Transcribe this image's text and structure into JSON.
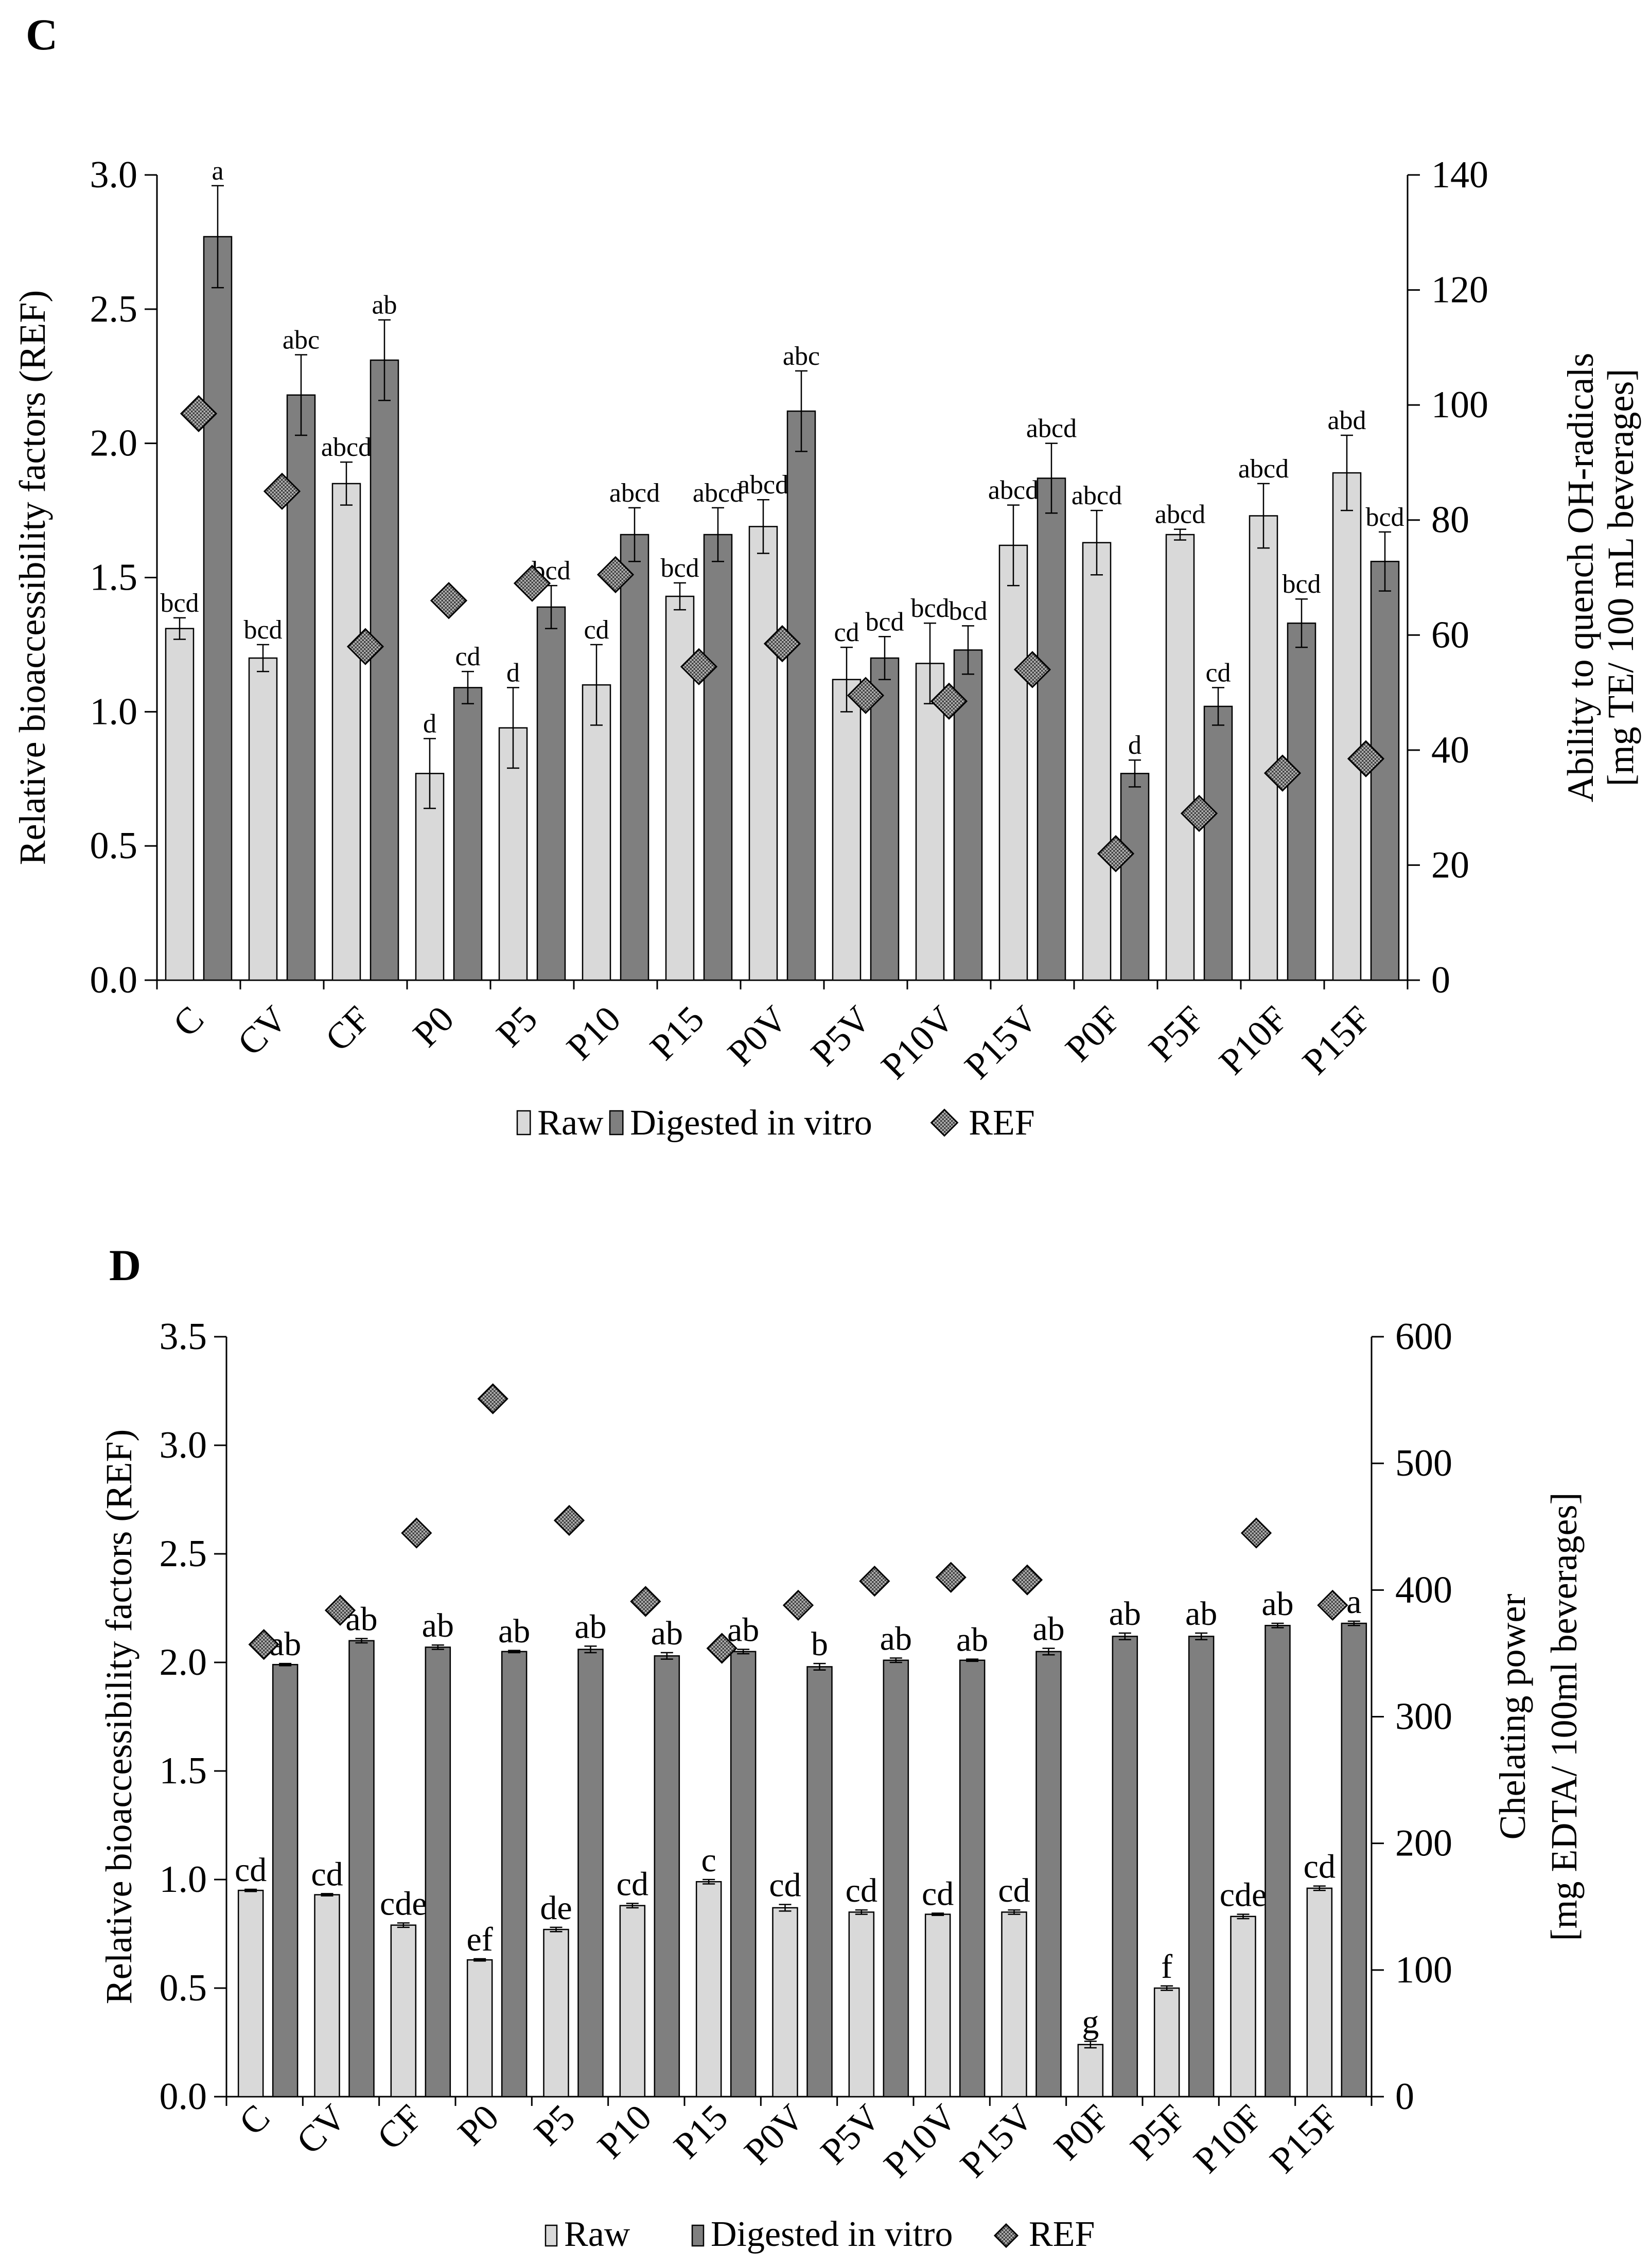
{
  "colors": {
    "raw": "#d9d9d9",
    "digested": "#7f7f7f",
    "ref_marker": "#8c8c8c",
    "axis": "#000000"
  },
  "legend": {
    "raw": "Raw",
    "digested": "Digested in vitro",
    "ref": "REF"
  },
  "chart_data": [
    {
      "panel": "C",
      "type": "bar",
      "categories": [
        "C",
        "CV",
        "CF",
        "P0",
        "P5",
        "P10",
        "P15",
        "P0V",
        "P5V",
        "P10V",
        "P15V",
        "P0F",
        "P5F",
        "P10F",
        "P15F"
      ],
      "ylabel": "Relative bioaccessibility factors (REF)",
      "y2label_line1": "Ability to quench OH-radicals",
      "y2label_line2": "[mg TE/ 100 mL beverages]",
      "ylim": [
        0,
        3.0
      ],
      "yticks": [
        "0.0",
        "0.5",
        "1.0",
        "1.5",
        "2.0",
        "2.5",
        "3.0"
      ],
      "y2lim": [
        0,
        140
      ],
      "y2ticks": [
        "0",
        "20",
        "40",
        "60",
        "80",
        "100",
        "120",
        "140"
      ],
      "series": [
        {
          "name": "Raw",
          "axis": "left",
          "values": [
            1.31,
            1.2,
            1.85,
            0.77,
            0.94,
            1.1,
            1.43,
            1.69,
            1.12,
            1.18,
            1.62,
            1.63,
            1.66,
            1.73,
            1.89
          ],
          "errors": [
            0.04,
            0.05,
            0.08,
            0.13,
            0.15,
            0.15,
            0.05,
            0.1,
            0.12,
            0.15,
            0.15,
            0.12,
            0.02,
            0.12,
            0.14
          ]
        },
        {
          "name": "Digested in vitro",
          "axis": "left",
          "values": [
            2.77,
            2.18,
            2.31,
            1.09,
            1.39,
            1.66,
            1.66,
            2.12,
            1.2,
            1.23,
            1.87,
            0.77,
            1.02,
            1.33,
            1.56
          ],
          "errors": [
            0.19,
            0.15,
            0.15,
            0.06,
            0.08,
            0.1,
            0.1,
            0.15,
            0.08,
            0.09,
            0.13,
            0.05,
            0.07,
            0.09,
            0.11
          ]
        },
        {
          "name": "REF",
          "axis": "right",
          "marker": "diamond",
          "values": [
            98.5,
            85,
            58,
            66,
            69,
            70.5,
            54.5,
            58.5,
            49.5,
            48.5,
            54,
            22,
            29,
            36,
            38.5
          ]
        }
      ],
      "raw_labels": [
        "bcd",
        "bcd",
        "abcd",
        "d",
        "d",
        "cd",
        "bcd",
        "abcd",
        "cd",
        "bcd",
        "abcd",
        "abcd",
        "abcd",
        "abcd",
        "abd"
      ],
      "digested_labels": [
        "a",
        "abc",
        "ab",
        "cd",
        "bcd",
        "abcd",
        "abcd",
        "abc",
        "bcd",
        "bcd",
        "abcd",
        "d",
        "cd",
        "bcd",
        "bcd"
      ]
    },
    {
      "panel": "D",
      "type": "bar",
      "categories": [
        "C",
        "CV",
        "CF",
        "P0",
        "P5",
        "P10",
        "P15",
        "P0V",
        "P5V",
        "P10V",
        "P15V",
        "P0F",
        "P5F",
        "P10F",
        "P15F"
      ],
      "ylabel": "Relative bioaccessibility factors (REF)",
      "y2label_line1": "Chelating power",
      "y2label_line2": "[mg EDTA/ 100ml beverages]",
      "ylim": [
        0,
        3.5
      ],
      "yticks": [
        "0.0",
        "0.5",
        "1.0",
        "1.5",
        "2.0",
        "2.5",
        "3.0",
        "3.5"
      ],
      "y2lim": [
        0,
        600
      ],
      "y2ticks": [
        "0",
        "100",
        "200",
        "300",
        "400",
        "500",
        "600"
      ],
      "series": [
        {
          "name": "Raw",
          "axis": "left",
          "values": [
            0.95,
            0.93,
            0.79,
            0.63,
            0.77,
            0.88,
            0.99,
            0.87,
            0.85,
            0.84,
            0.85,
            0.24,
            0.5,
            0.83,
            0.96
          ],
          "errors": [
            0.005,
            0.005,
            0.01,
            0.005,
            0.01,
            0.01,
            0.01,
            0.015,
            0.01,
            0.005,
            0.01,
            0.015,
            0.01,
            0.01,
            0.01
          ]
        },
        {
          "name": "Digested in vitro",
          "axis": "left",
          "values": [
            1.99,
            2.1,
            2.07,
            2.05,
            2.06,
            2.03,
            2.05,
            1.98,
            2.01,
            2.01,
            2.05,
            2.12,
            2.12,
            2.17,
            2.18
          ],
          "errors": [
            0.005,
            0.01,
            0.01,
            0.005,
            0.015,
            0.015,
            0.01,
            0.015,
            0.01,
            0.005,
            0.015,
            0.015,
            0.015,
            0.01,
            0.01
          ]
        },
        {
          "name": "REF",
          "axis": "right",
          "marker": "diamond",
          "values": [
            357,
            384,
            445,
            551,
            455,
            391,
            354,
            388,
            407,
            410,
            408,
            null,
            null,
            445,
            388
          ]
        }
      ],
      "raw_labels": [
        "cd",
        "cd",
        "cde",
        "ef",
        "de",
        "cd",
        "c",
        "cd",
        "cd",
        "cd",
        "cd",
        "g",
        "f",
        "cde",
        "cd"
      ],
      "digested_labels": [
        "ab",
        "ab",
        "ab",
        "ab",
        "ab",
        "ab",
        "ab",
        "b",
        "ab",
        "ab",
        "ab",
        "ab",
        "ab",
        "ab",
        "a"
      ]
    }
  ]
}
